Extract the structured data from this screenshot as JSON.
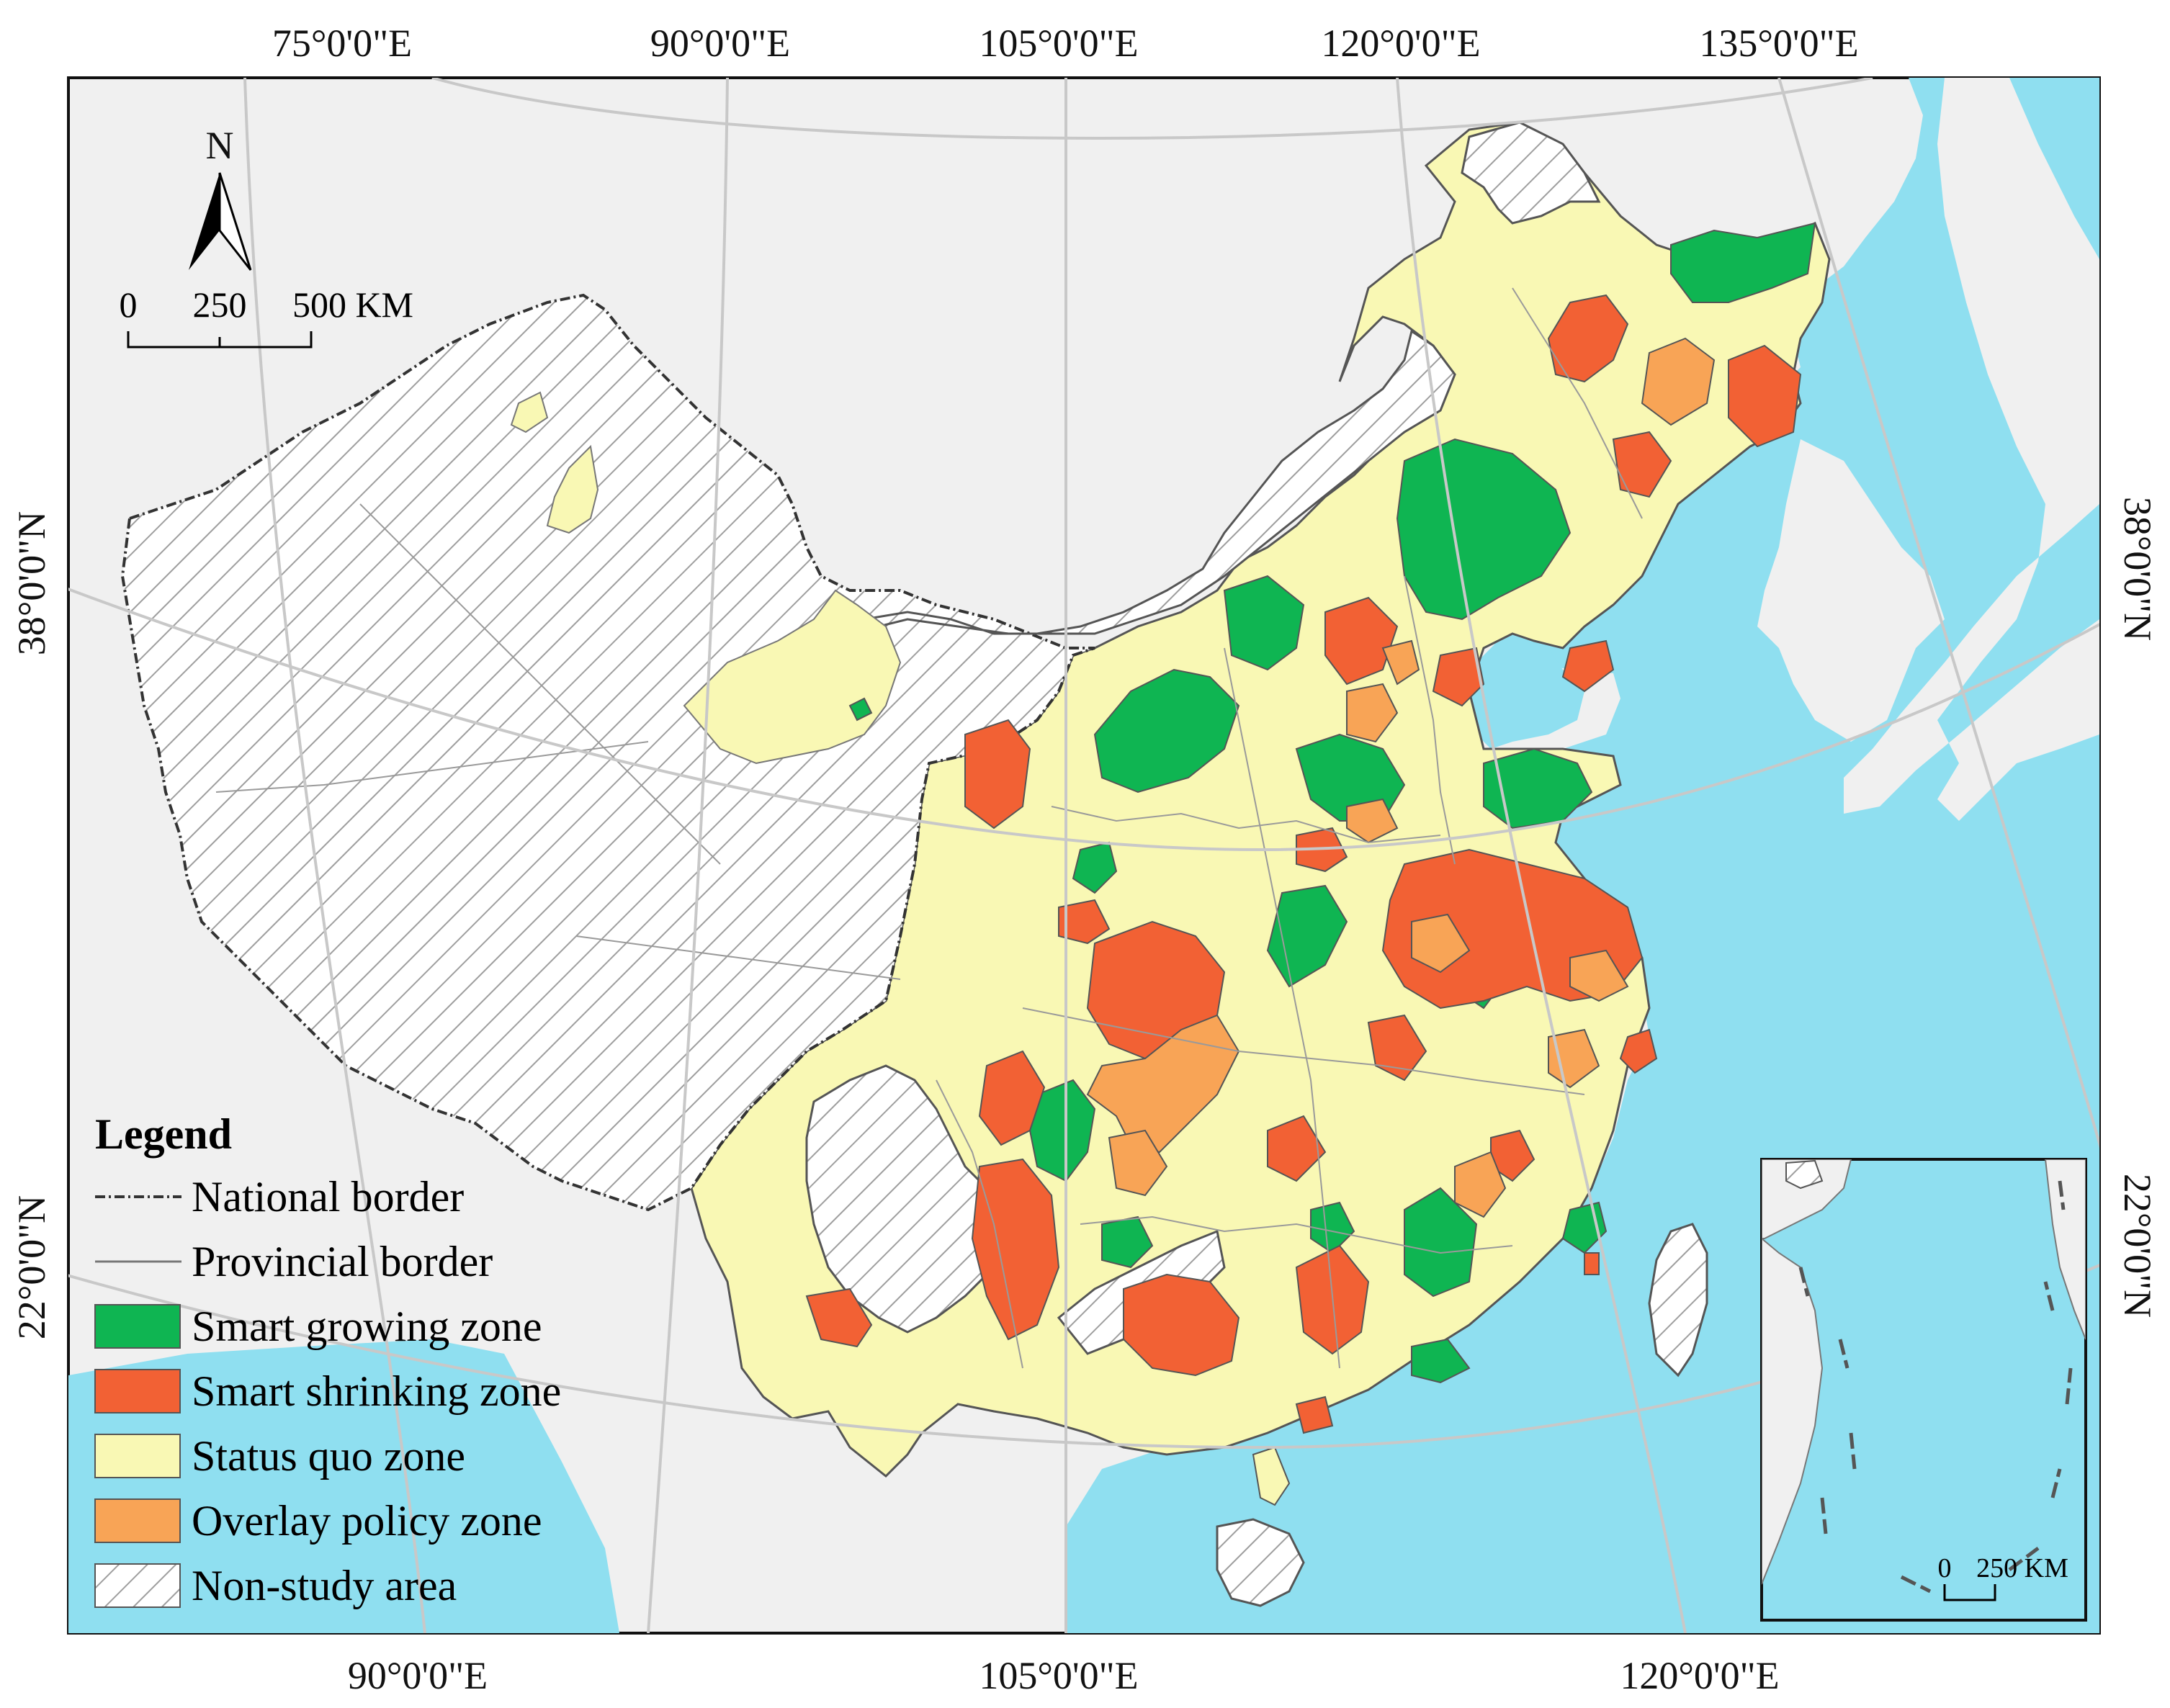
{
  "axes": {
    "top_labels": [
      "75°0'0\"E",
      "90°0'0\"E",
      "105°0'0\"E",
      "120°0'0\"E",
      "135°0'0\"E"
    ],
    "bottom_labels": [
      "90°0'0\"E",
      "105°0'0\"E",
      "120°0'0\"E"
    ],
    "left_labels": [
      "38°0'0\"N",
      "22°0'0\"N"
    ],
    "right_labels": [
      "38°0'0\"N",
      "22°0'0\"N"
    ]
  },
  "north_arrow": {
    "label": "N"
  },
  "scale_bar": {
    "labels": [
      "0",
      "250",
      "500 KM"
    ]
  },
  "inset": {
    "scale_labels": [
      "0",
      "250 KM"
    ]
  },
  "legend": {
    "title": "Legend",
    "items": [
      {
        "label": "National border",
        "symbol": "dash-dot-line"
      },
      {
        "label": "Provincial border",
        "symbol": "thin-line"
      },
      {
        "label": "Smart growing zone",
        "symbol": "fill",
        "color": "#0fb552"
      },
      {
        "label": "Smart shrinking zone",
        "symbol": "fill",
        "color": "#f26134"
      },
      {
        "label": "Status quo zone",
        "symbol": "fill",
        "color": "#f9f8b4"
      },
      {
        "label": "Overlay policy zone",
        "symbol": "fill",
        "color": "#f8a456"
      },
      {
        "label": "Non-study area",
        "symbol": "hatch"
      }
    ]
  },
  "colors": {
    "sea": "#8fdff0",
    "land_background": "#f0f0f0",
    "smart_growing": "#0fb552",
    "smart_shrinking": "#f26134",
    "status_quo": "#f9f8b4",
    "overlay_policy": "#f8a456"
  }
}
